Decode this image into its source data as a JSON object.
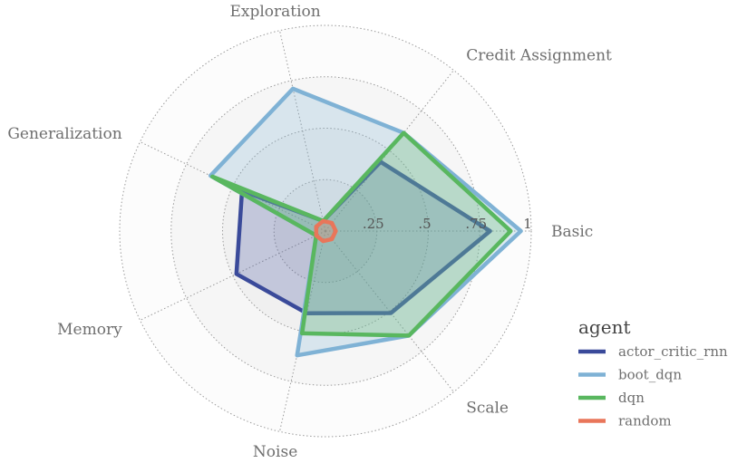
{
  "chart_data": {
    "type": "radar",
    "axes": [
      "Basic",
      "Credit Assignment",
      "Exploration",
      "Generalization",
      "Memory",
      "Noise",
      "Scale"
    ],
    "rticks": [
      0.25,
      0.5,
      0.75,
      1.0
    ],
    "rtick_labels": [
      ".25",
      ".5",
      ".75",
      "1"
    ],
    "rlim": [
      0,
      1
    ],
    "grid": true,
    "legend": {
      "title": "agent",
      "position": "right"
    },
    "series": [
      {
        "name": "actor_critic_rnn",
        "color": "#3a4a9a",
        "values": [
          0.8,
          0.43,
          0.05,
          0.45,
          0.48,
          0.41,
          0.51
        ]
      },
      {
        "name": "boot_dqn",
        "color": "#7fb2d5",
        "values": [
          0.95,
          0.61,
          0.71,
          0.62,
          0.05,
          0.62,
          0.65
        ]
      },
      {
        "name": "dqn",
        "color": "#59b75f",
        "values": [
          0.9,
          0.61,
          0.05,
          0.61,
          0.05,
          0.51,
          0.65
        ]
      },
      {
        "name": "random",
        "color": "#e9765a",
        "values": [
          0.05,
          0.05,
          0.05,
          0.05,
          0.05,
          0.05,
          0.05
        ]
      }
    ]
  }
}
